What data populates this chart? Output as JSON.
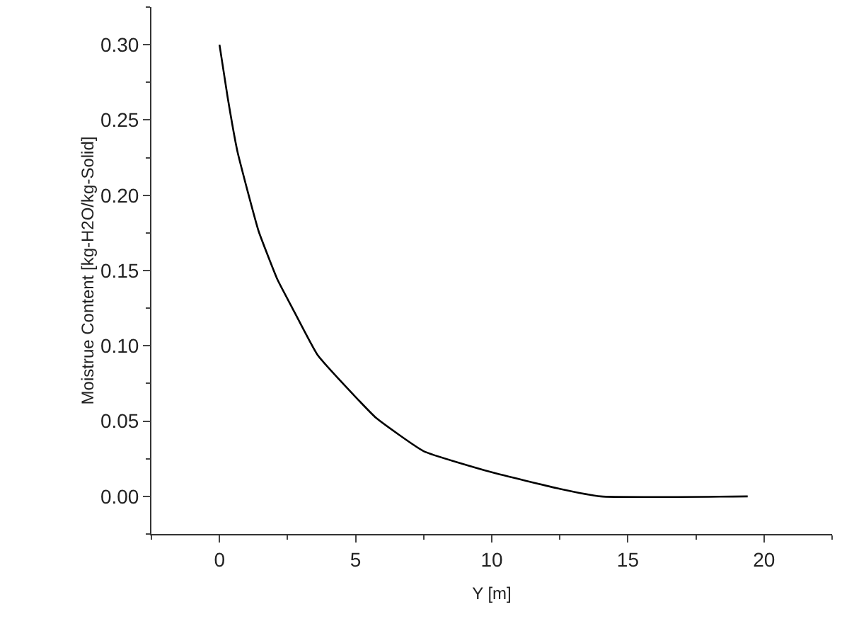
{
  "chart_data": {
    "type": "line",
    "xlabel": "Y [m]",
    "ylabel": "Moistrue Content [kg-H2O/kg-Solid]",
    "x": [
      0,
      0.3,
      0.66,
      1,
      1.44,
      2.13,
      2.65,
      3.6,
      5,
      5.76,
      7.5,
      10,
      12.5,
      14,
      19.4
    ],
    "series": [
      {
        "color": "#000000",
        "values": [
          0.3,
          0.265,
          0.229,
          0.205,
          0.176,
          0.144,
          0.126,
          0.094,
          0.066,
          0.052,
          0.03,
          0.016,
          0.005,
          0,
          0
        ]
      }
    ],
    "xlim": [
      -2.5,
      22.5
    ],
    "ylim": [
      -0.025,
      0.325
    ],
    "xticks": [
      0,
      5,
      10,
      15,
      20
    ],
    "yticks": [
      {
        "value": 0,
        "label": "0.00"
      },
      {
        "value": 0.05,
        "label": "0.05"
      },
      {
        "value": 0.1,
        "label": "0.10"
      },
      {
        "value": 0.15,
        "label": "0.15"
      },
      {
        "value": 0.2,
        "label": "0.20"
      },
      {
        "value": 0.25,
        "label": "0.25"
      },
      {
        "value": 0.3,
        "label": "0.30"
      }
    ],
    "grid": false,
    "marker": "none",
    "line_style": "solid"
  }
}
